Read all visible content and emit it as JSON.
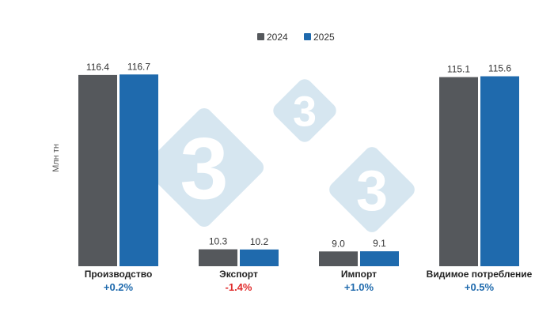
{
  "chart_data": {
    "type": "bar",
    "ylabel": "Млн тн",
    "ylim": [
      0,
      125
    ],
    "legend_position": "top",
    "categories": [
      "Производство",
      "Экспорт",
      "Импорт",
      "Видимое потребление"
    ],
    "series": [
      {
        "name": "2024",
        "color": "#55585c",
        "values": [
          116.4,
          10.3,
          9.0,
          115.1
        ]
      },
      {
        "name": "2025",
        "color": "#1f6aad",
        "values": [
          116.7,
          10.2,
          9.1,
          115.6
        ]
      }
    ],
    "data_labels": [
      [
        "116.4",
        "10.3",
        "9.0",
        "115.1"
      ],
      [
        "116.7",
        "10.2",
        "9.1",
        "115.6"
      ]
    ],
    "changes": [
      {
        "text": "+0.2%",
        "color": "#1f6aad"
      },
      {
        "text": "-1.4%",
        "color": "#e02b2b"
      },
      {
        "text": "+1.0%",
        "color": "#1f6aad"
      },
      {
        "text": "+0.5%",
        "color": "#1f6aad"
      }
    ],
    "watermark": "3",
    "watermark_color": "#d6e6f0"
  }
}
